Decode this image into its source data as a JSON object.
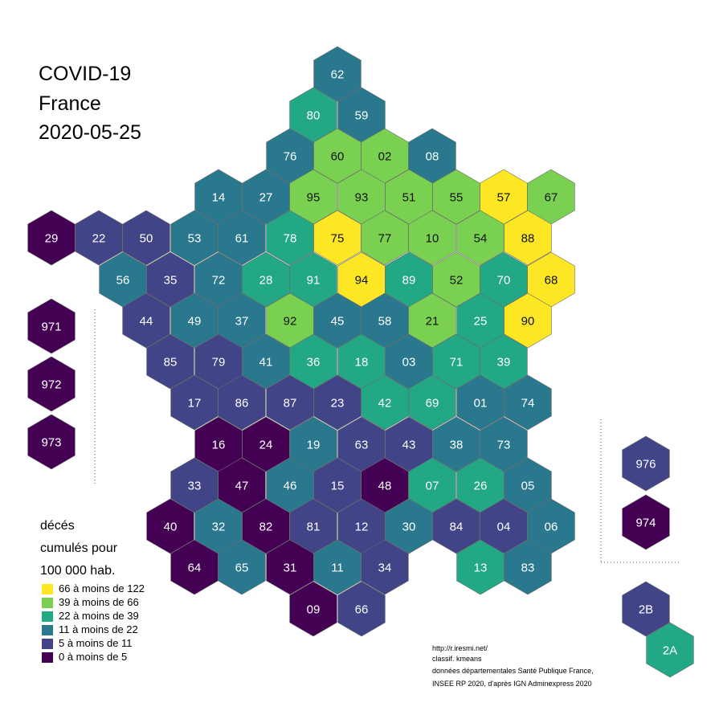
{
  "title": {
    "line1": "COVID-19",
    "line2": "France",
    "line3": "2020-05-25"
  },
  "legend": {
    "title_line1": "décés",
    "title_line2": "cumulés pour",
    "title_line3": "100 000 hab.",
    "classes": [
      {
        "label": "66 à moins de 122",
        "color": "#fde725"
      },
      {
        "label": "39 à moins de 66",
        "color": "#7ad151"
      },
      {
        "label": "22 à moins de 39",
        "color": "#22a884"
      },
      {
        "label": "11 à moins de 22",
        "color": "#2a788e"
      },
      {
        "label": "5 à moins de 11",
        "color": "#414487"
      },
      {
        "label": "0 à moins de 5",
        "color": "#440154"
      }
    ]
  },
  "credits": {
    "line1": "http://r.iresmi.net/",
    "line2": "classif. kmeans",
    "line3": "données départementales Santé Publique France,",
    "line4": "INSEE RP 2020, d'après IGN Adminexpress 2020"
  },
  "departments": [
    {
      "code": "62",
      "cls": 3
    },
    {
      "code": "80",
      "cls": 2
    },
    {
      "code": "59",
      "cls": 3
    },
    {
      "code": "76",
      "cls": 3
    },
    {
      "code": "60",
      "cls": 1
    },
    {
      "code": "02",
      "cls": 1
    },
    {
      "code": "08",
      "cls": 3
    },
    {
      "code": "14",
      "cls": 3
    },
    {
      "code": "27",
      "cls": 3
    },
    {
      "code": "95",
      "cls": 1
    },
    {
      "code": "93",
      "cls": 1
    },
    {
      "code": "51",
      "cls": 1
    },
    {
      "code": "55",
      "cls": 1
    },
    {
      "code": "57",
      "cls": 0
    },
    {
      "code": "67",
      "cls": 1
    },
    {
      "code": "29",
      "cls": 5
    },
    {
      "code": "22",
      "cls": 4
    },
    {
      "code": "50",
      "cls": 4
    },
    {
      "code": "53",
      "cls": 3
    },
    {
      "code": "61",
      "cls": 3
    },
    {
      "code": "78",
      "cls": 2
    },
    {
      "code": "75",
      "cls": 0
    },
    {
      "code": "77",
      "cls": 1
    },
    {
      "code": "10",
      "cls": 1
    },
    {
      "code": "54",
      "cls": 1
    },
    {
      "code": "88",
      "cls": 0
    },
    {
      "code": "56",
      "cls": 3
    },
    {
      "code": "35",
      "cls": 4
    },
    {
      "code": "72",
      "cls": 3
    },
    {
      "code": "28",
      "cls": 2
    },
    {
      "code": "91",
      "cls": 2
    },
    {
      "code": "94",
      "cls": 0
    },
    {
      "code": "89",
      "cls": 2
    },
    {
      "code": "52",
      "cls": 1
    },
    {
      "code": "70",
      "cls": 2
    },
    {
      "code": "68",
      "cls": 0
    },
    {
      "code": "44",
      "cls": 4
    },
    {
      "code": "49",
      "cls": 3
    },
    {
      "code": "37",
      "cls": 3
    },
    {
      "code": "92",
      "cls": 1
    },
    {
      "code": "45",
      "cls": 3
    },
    {
      "code": "58",
      "cls": 3
    },
    {
      "code": "21",
      "cls": 1
    },
    {
      "code": "25",
      "cls": 2
    },
    {
      "code": "90",
      "cls": 0
    },
    {
      "code": "85",
      "cls": 4
    },
    {
      "code": "79",
      "cls": 4
    },
    {
      "code": "41",
      "cls": 3
    },
    {
      "code": "36",
      "cls": 2
    },
    {
      "code": "18",
      "cls": 2
    },
    {
      "code": "03",
      "cls": 3
    },
    {
      "code": "71",
      "cls": 2
    },
    {
      "code": "39",
      "cls": 2
    },
    {
      "code": "17",
      "cls": 4
    },
    {
      "code": "86",
      "cls": 4
    },
    {
      "code": "87",
      "cls": 4
    },
    {
      "code": "23",
      "cls": 4
    },
    {
      "code": "42",
      "cls": 2
    },
    {
      "code": "69",
      "cls": 2
    },
    {
      "code": "01",
      "cls": 3
    },
    {
      "code": "74",
      "cls": 3
    },
    {
      "code": "16",
      "cls": 5
    },
    {
      "code": "24",
      "cls": 5
    },
    {
      "code": "19",
      "cls": 3
    },
    {
      "code": "63",
      "cls": 4
    },
    {
      "code": "43",
      "cls": 4
    },
    {
      "code": "38",
      "cls": 3
    },
    {
      "code": "73",
      "cls": 3
    },
    {
      "code": "33",
      "cls": 4
    },
    {
      "code": "47",
      "cls": 5
    },
    {
      "code": "46",
      "cls": 3
    },
    {
      "code": "15",
      "cls": 4
    },
    {
      "code": "48",
      "cls": 5
    },
    {
      "code": "07",
      "cls": 2
    },
    {
      "code": "26",
      "cls": 2
    },
    {
      "code": "05",
      "cls": 3
    },
    {
      "code": "40",
      "cls": 5
    },
    {
      "code": "32",
      "cls": 3
    },
    {
      "code": "82",
      "cls": 5
    },
    {
      "code": "81",
      "cls": 4
    },
    {
      "code": "12",
      "cls": 4
    },
    {
      "code": "30",
      "cls": 3
    },
    {
      "code": "84",
      "cls": 4
    },
    {
      "code": "04",
      "cls": 4
    },
    {
      "code": "06",
      "cls": 3
    },
    {
      "code": "64",
      "cls": 5
    },
    {
      "code": "65",
      "cls": 3
    },
    {
      "code": "31",
      "cls": 5
    },
    {
      "code": "11",
      "cls": 3
    },
    {
      "code": "34",
      "cls": 4
    },
    {
      "code": "13",
      "cls": 2
    },
    {
      "code": "83",
      "cls": 3
    },
    {
      "code": "09",
      "cls": 5
    },
    {
      "code": "66",
      "cls": 4
    },
    {
      "code": "971",
      "cls": 5
    },
    {
      "code": "972",
      "cls": 5
    },
    {
      "code": "973",
      "cls": 5
    },
    {
      "code": "976",
      "cls": 4
    },
    {
      "code": "974",
      "cls": 5
    },
    {
      "code": "2B",
      "cls": 4
    },
    {
      "code": "2A",
      "cls": 2
    }
  ]
}
